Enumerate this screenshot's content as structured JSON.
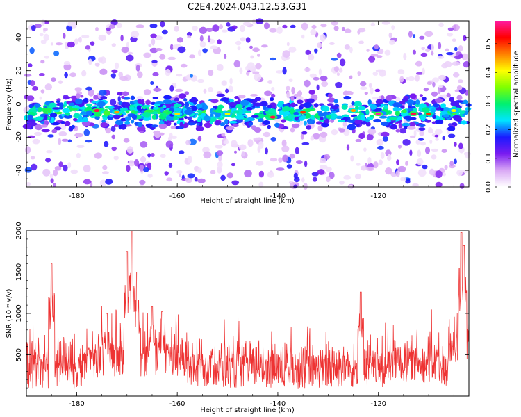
{
  "title": "C2E4.2024.043.12.53.G31",
  "chart_data": [
    {
      "type": "heatmap",
      "title": "C2E4.2024.043.12.53.G31",
      "xlabel": "Height of straight line (km)",
      "ylabel": "Frequency (Hz)",
      "xlim": [
        -190,
        -102
      ],
      "ylim": [
        -50,
        50
      ],
      "x_ticks": [
        -180,
        -160,
        -140,
        -120
      ],
      "x_tick_labels": [
        "-180",
        "-160",
        "-140",
        "-120"
      ],
      "y_ticks": [
        -40,
        -20,
        0,
        20,
        40
      ],
      "y_tick_labels": [
        "-40",
        "-20",
        "0",
        "20",
        "40"
      ],
      "band": {
        "center_hz": -5,
        "width_hz": 8
      },
      "hotspots": [
        {
          "x": -176,
          "y": -4,
          "value": 0.55
        },
        {
          "x": -172,
          "y": -5,
          "value": 0.45
        },
        {
          "x": -160,
          "y": -6,
          "value": 0.42
        },
        {
          "x": -150,
          "y": -6,
          "value": 0.4
        },
        {
          "x": -141,
          "y": -8,
          "value": 0.55
        },
        {
          "x": -135,
          "y": -5,
          "value": 0.5
        },
        {
          "x": -125,
          "y": -4,
          "value": 0.45
        },
        {
          "x": -120,
          "y": -6,
          "value": 0.58
        },
        {
          "x": -113,
          "y": -6,
          "value": 0.55
        },
        {
          "x": -110,
          "y": -6,
          "value": 0.5
        },
        {
          "x": -105,
          "y": -4,
          "value": 0.4
        }
      ],
      "colorbar": {
        "label": "Normalized spectral amplitude",
        "range": [
          0.0,
          0.58
        ],
        "ticks": [
          0.0,
          0.1,
          0.2,
          0.3,
          0.4,
          0.5
        ],
        "tick_labels": [
          "0.0",
          "0.1",
          "0.2",
          "0.3",
          "0.4",
          "0.5"
        ],
        "colors": [
          "#ffffff",
          "#d9a8f5",
          "#7a1bf0",
          "#1a1aff",
          "#00e5ff",
          "#00f070",
          "#80ff00",
          "#ffff00",
          "#ff8000",
          "#ff0000",
          "#ff1aa0"
        ]
      }
    },
    {
      "type": "line",
      "xlabel": "Height of straight line (km)",
      "ylabel": "SNR (10 * v/v)",
      "xlim": [
        -190,
        -102
      ],
      "ylim": [
        0,
        2000
      ],
      "x_ticks": [
        -180,
        -160,
        -140,
        -120
      ],
      "x_tick_labels": [
        "-180",
        "-160",
        "-140",
        "-120"
      ],
      "y_ticks": [
        500,
        1000,
        1500,
        2000
      ],
      "y_tick_labels": [
        "500",
        "1000",
        "1500",
        "2000"
      ],
      "color": "#ee3333",
      "peaks": [
        {
          "x": -185,
          "y": 1600
        },
        {
          "x": -174,
          "y": 1000
        },
        {
          "x": -170,
          "y": 1750
        },
        {
          "x": -169,
          "y": 2000
        },
        {
          "x": -168,
          "y": 1500
        },
        {
          "x": -165,
          "y": 1080
        },
        {
          "x": -163,
          "y": 1020
        },
        {
          "x": -123.5,
          "y": 1260
        },
        {
          "x": -103.5,
          "y": 1980
        },
        {
          "x": -103,
          "y": 1820
        }
      ]
    }
  ]
}
